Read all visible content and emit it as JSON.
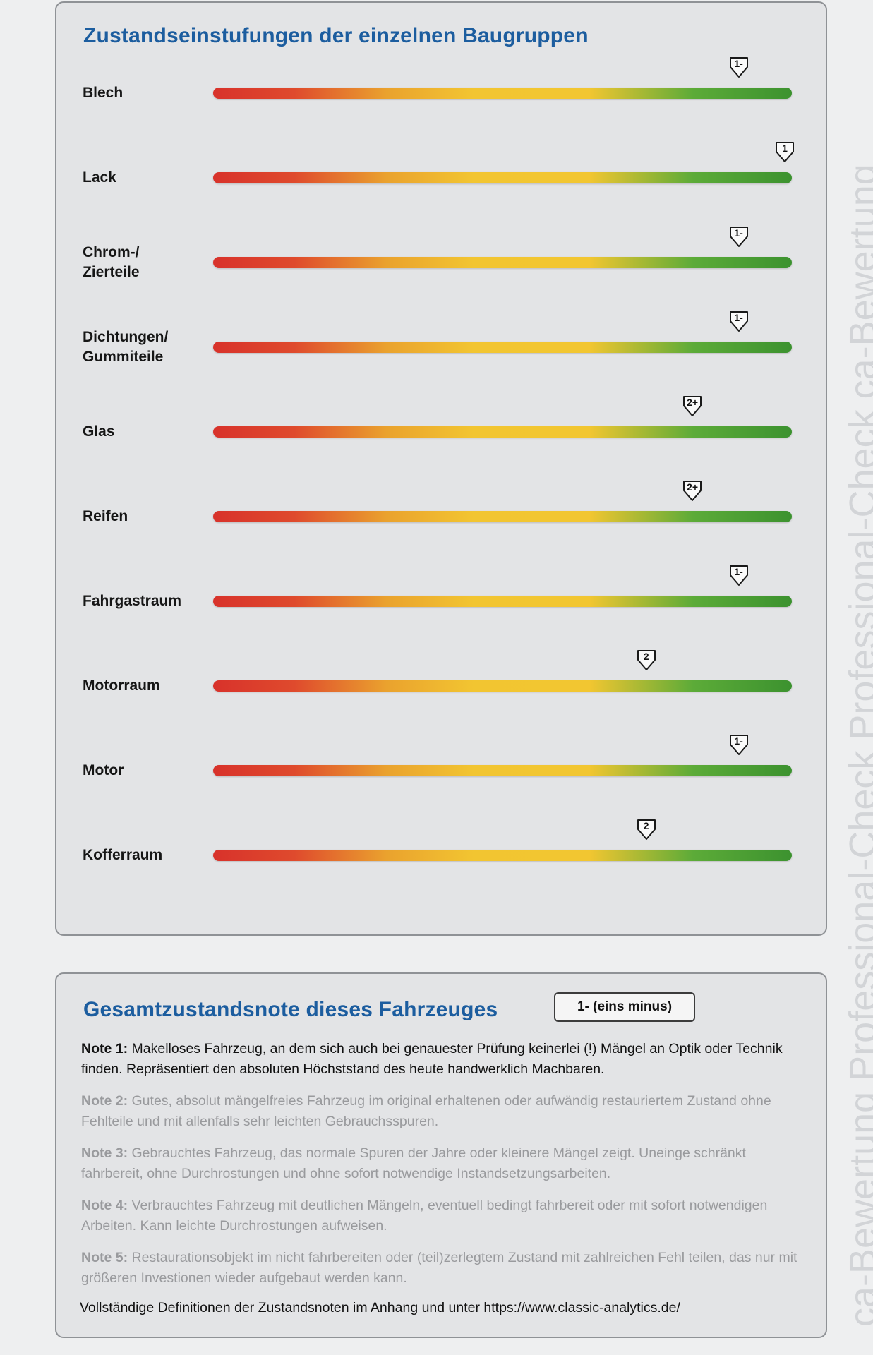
{
  "ratings": {
    "title": "Zustandseinstufungen der einzelnen Baugruppen",
    "items": [
      {
        "label": "Blech",
        "grade": "1-",
        "level": 0.915
      },
      {
        "label": "Lack",
        "grade": "1",
        "level": 1.0
      },
      {
        "label": "Chrom-/\nZierteile",
        "grade": "1-",
        "level": 0.915
      },
      {
        "label": "Dichtungen/\nGummiteile",
        "grade": "1-",
        "level": 0.915
      },
      {
        "label": "Glas",
        "grade": "2+",
        "level": 0.83
      },
      {
        "label": "Reifen",
        "grade": "2+",
        "level": 0.83
      },
      {
        "label": "Fahrgastraum",
        "grade": "1-",
        "level": 0.915
      },
      {
        "label": "Motorraum",
        "grade": "2",
        "level": 0.745
      },
      {
        "label": "Motor",
        "grade": "1-",
        "level": 0.915
      },
      {
        "label": "Kofferraum",
        "grade": "2",
        "level": 0.745
      }
    ]
  },
  "overall": {
    "title": "Gesamtzustandsnote dieses Fahrzeuges",
    "grade": "1- (eins minus)",
    "notes": [
      {
        "label": "Note 1:",
        "text": "Makelloses Fahrzeug, an dem sich auch bei genauester Prüfung keinerlei (!) Mängel an Optik oder Technik finden. Repräsentiert den absoluten Höchststand des heute handwerklich Machbaren."
      },
      {
        "label": "Note 2:",
        "text": "Gutes, absolut mängelfreies Fahrzeug im original erhaltenen oder aufwändig restauriertem Zustand ohne Fehlteile und mit allenfalls sehr leichten Gebrauchsspuren."
      },
      {
        "label": "Note 3:",
        "text": "Gebrauchtes Fahrzeug, das normale Spuren der Jahre oder kleinere Mängel zeigt. Uneinge schränkt fahrbereit, ohne Durchrostungen und ohne sofort notwendige Instandsetzungsarbeiten."
      },
      {
        "label": "Note 4:",
        "text": "Verbrauchtes Fahrzeug mit deutlichen Mängeln, eventuell bedingt fahrbereit oder mit sofort notwendigen Arbeiten. Kann leichte Durchrostungen aufweisen."
      },
      {
        "label": "Note 5:",
        "text": "Restaurationsobjekt im nicht fahrbereiten oder (teil)zerlegtem Zustand mit zahlreichen Fehl teilen, das nur mit größeren Investionen wieder aufgebaut werden kann."
      }
    ],
    "footer": "Vollständige Definitionen der Zustandsnoten im Anhang und unter https://www.classic-analytics.de/"
  },
  "side_text": "ca-Bewertung Professional-Check   Professional-Check ca-Bewertung"
}
